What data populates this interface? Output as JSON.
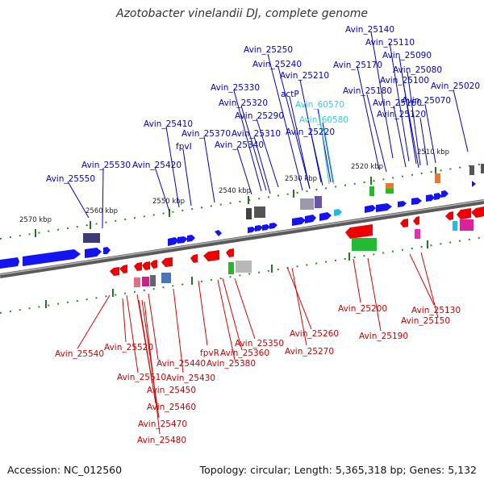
{
  "title": "Azotobacter vinelandii DJ, complete genome",
  "footer": {
    "accession": "Accession: NC_012560",
    "topology": "Topology: circular; Length: 5,365,318 bp; Genes: 5,132"
  },
  "colors": {
    "forward_strand": "#0000ff",
    "reverse_strand": "#ff0000",
    "rna_gene": "#33ccdd",
    "backbone": "#808080",
    "ticks": "#228822",
    "kbp_text": "#222222"
  },
  "scale_labels": [
    "2570 kbp",
    "2560 kbp",
    "2550 kbp",
    "2540 kbp",
    "2530 kbp",
    "2520 kbp",
    "2510 kbp"
  ],
  "top_labels": [
    "Avin_25140",
    "Avin_25110",
    "Avin_25250",
    "Avin_25090",
    "Avin_25240",
    "Avin_25170",
    "Avin_25080",
    "Avin_25210",
    "Avin_25100",
    "Avin_25330",
    "Avin_25180",
    "Avin_25020",
    "actP",
    "Avin_25320",
    "Avin_60570",
    "Avin_25160",
    "Avin_25070",
    "Avin_25290",
    "Avin_25120",
    "Avin_25410",
    "Avin_60580",
    "Avin_25370",
    "Avin_25310",
    "Avin_25220",
    "fpvI",
    "Avin_25340",
    "Avin_25530",
    "Avin_25420",
    "Avin_25550"
  ],
  "bottom_labels": [
    "Avin_25200",
    "Avin_25130",
    "Avin_25150",
    "Avin_25540",
    "Avin_25190",
    "Avin_25260",
    "Avin_25350",
    "Avin_25520",
    "Avin_25270",
    "fpvR",
    "Avin_25360",
    "Avin_25440",
    "Avin_25380",
    "Avin_25510",
    "Avin_25430",
    "Avin_25450",
    "Avin_25460",
    "Avin_25470",
    "Avin_25480"
  ]
}
